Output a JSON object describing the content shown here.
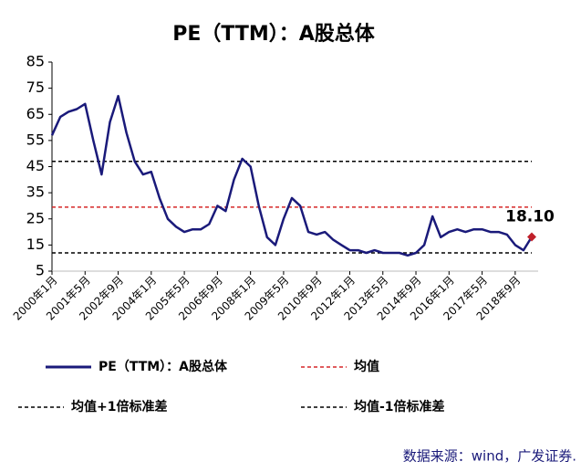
{
  "chart_data": {
    "type": "line",
    "title": "PE（TTM）：A股总体",
    "source": "数据来源：wind，广发证券.",
    "categories": [
      "2000年1月",
      null,
      null,
      null,
      "2001年5月",
      null,
      null,
      null,
      "2002年9月",
      null,
      null,
      null,
      "2004年1月",
      null,
      null,
      null,
      "2005年5月",
      null,
      null,
      null,
      "2006年9月",
      null,
      null,
      null,
      "2008年1月",
      null,
      null,
      null,
      "2009年5月",
      null,
      null,
      null,
      "2010年9月",
      null,
      null,
      null,
      "2012年1月",
      null,
      null,
      null,
      "2013年5月",
      null,
      null,
      null,
      "2014年9月",
      null,
      null,
      null,
      "2016年1月",
      null,
      null,
      null,
      "2017年5月",
      null,
      null,
      null,
      "2018年9月",
      null,
      null
    ],
    "series": [
      {
        "name": "PE（TTM）：A股总体",
        "color": "#1a1a7a",
        "values": [
          57,
          64,
          66,
          67,
          69,
          55,
          42,
          62,
          72,
          58,
          47,
          42,
          43,
          33,
          25,
          22,
          20,
          21,
          21,
          23,
          30,
          28,
          40,
          48,
          45,
          30,
          18,
          15,
          25,
          33,
          30,
          20,
          19,
          20,
          17,
          15,
          13,
          13,
          12,
          13,
          12,
          12,
          12,
          11,
          12,
          15,
          26,
          18,
          20,
          21,
          20,
          21,
          21,
          20,
          20,
          19,
          15,
          13,
          18.1
        ],
        "value_labels": [
          null,
          null,
          null,
          null,
          null,
          null,
          null,
          null,
          null,
          null,
          null,
          null,
          null,
          null,
          null,
          null,
          null,
          null,
          null,
          null,
          null,
          null,
          null,
          null,
          null,
          null,
          null,
          null,
          null,
          null,
          null,
          null,
          null,
          null,
          null,
          null,
          null,
          null,
          null,
          null,
          null,
          null,
          null,
          null,
          null,
          null,
          null,
          null,
          null,
          null,
          null,
          null,
          null,
          null,
          null,
          null,
          null,
          null,
          "18.10"
        ]
      }
    ],
    "reference_lines": [
      {
        "name": "均值",
        "value": 29.5,
        "color": "#d62728"
      },
      {
        "name": "均值+1倍标准差",
        "value": 47,
        "color": "#000000"
      },
      {
        "name": "均值-1倍标准差",
        "value": 12,
        "color": "#000000"
      }
    ],
    "ylim": [
      5,
      85
    ],
    "yticks": [
      5,
      15,
      25,
      35,
      45,
      55,
      65,
      75,
      85
    ],
    "grid": false
  }
}
